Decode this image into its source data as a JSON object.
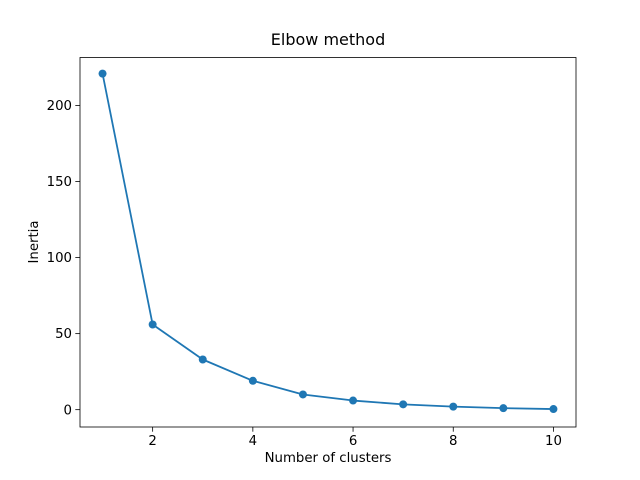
{
  "figure": {
    "background": "#ffffff"
  },
  "chart_data": {
    "type": "line",
    "title": "Elbow method",
    "xlabel": "Number of clusters",
    "ylabel": "Inertia",
    "x": [
      1,
      2,
      3,
      4,
      5,
      6,
      7,
      8,
      9,
      10
    ],
    "y": [
      221,
      56,
      33,
      19,
      10,
      6,
      3.5,
      2,
      1,
      0.4
    ],
    "xticks": [
      2,
      4,
      6,
      8,
      10
    ],
    "yticks": [
      0,
      50,
      100,
      150,
      200
    ],
    "xlim": [
      0.55,
      10.45
    ],
    "ylim": [
      -11.4,
      231.6
    ],
    "grid": false,
    "legend": null,
    "line_color": "#1f77b4",
    "marker": "circle",
    "marker_color": "#1f77b4",
    "axis_color": "#000000",
    "tick_label_color": "#000000"
  }
}
